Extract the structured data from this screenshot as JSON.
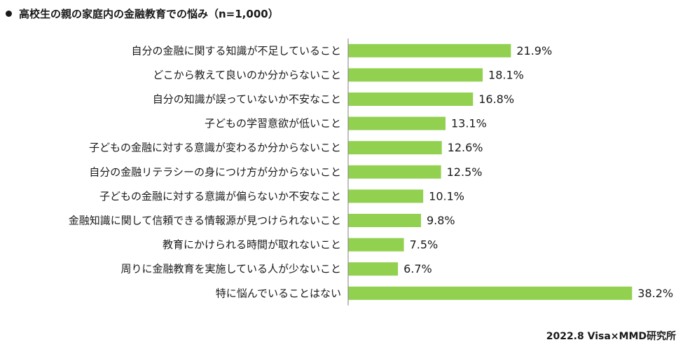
{
  "header": {
    "title": "高校生の親の家庭内の金融教育での悩み（n=1,000）"
  },
  "source": "2022.8 Visa×MMD研究所",
  "chart_data": {
    "type": "bar",
    "orientation": "horizontal",
    "title": "高校生の親の家庭内の金融教育での悩み（n=1,000）",
    "categories": [
      "自分の金融に関する知識が不足していること",
      "どこから教えて良いのか分からないこと",
      "自分の知識が誤っていないか不安なこと",
      "子どもの学習意欲が低いこと",
      "子どもの金融に対する意識が変わるか分からないこと",
      "自分の金融リテラシーの身につけ方が分からないこと",
      "子どもの金融に対する意識が偏らないか不安なこと",
      "金融知識に関して信頼できる情報源が見つけられないこと",
      "教育にかけられる時間が取れないこと",
      "周りに金融教育を実施している人が少ないこと",
      "特に悩んでいることはない"
    ],
    "values": [
      21.9,
      18.1,
      16.8,
      13.1,
      12.6,
      12.5,
      10.1,
      9.8,
      7.5,
      6.7,
      38.2
    ],
    "value_labels": [
      "21.9%",
      "18.1%",
      "16.8%",
      "13.1%",
      "12.6%",
      "12.5%",
      "10.1%",
      "9.8%",
      "7.5%",
      "6.7%",
      "38.2%"
    ],
    "unit": "%",
    "xlim": [
      0,
      40
    ],
    "grid": false,
    "bar_color": "#92d050",
    "axis_color": "#7f7f7f"
  }
}
